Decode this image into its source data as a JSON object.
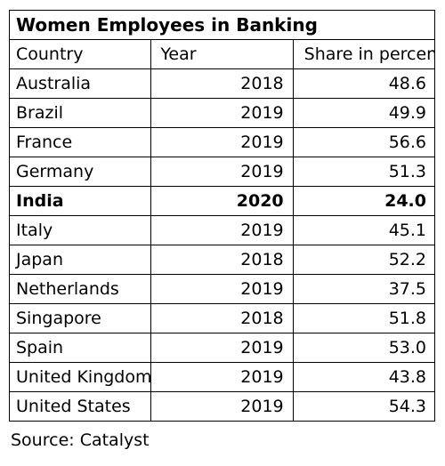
{
  "chart_data": {
    "type": "table",
    "title": "Women Employees in Banking",
    "columns": [
      "Country",
      "Year",
      "Share in percent"
    ],
    "highlight_row": "India",
    "rows": [
      {
        "country": "Australia",
        "year": "2018",
        "share": "48.6"
      },
      {
        "country": "Brazil",
        "year": "2019",
        "share": "49.9"
      },
      {
        "country": "France",
        "year": "2019",
        "share": "56.6"
      },
      {
        "country": "Germany",
        "year": "2019",
        "share": "51.3"
      },
      {
        "country": "India",
        "year": "2020",
        "share": "24.0"
      },
      {
        "country": "Italy",
        "year": "2019",
        "share": "45.1"
      },
      {
        "country": "Japan",
        "year": "2018",
        "share": "52.2"
      },
      {
        "country": "Netherlands",
        "year": "2019",
        "share": "37.5"
      },
      {
        "country": "Singapore",
        "year": "2018",
        "share": "51.8"
      },
      {
        "country": "Spain",
        "year": "2019",
        "share": "53.0"
      },
      {
        "country": "United Kingdom",
        "year": "2019",
        "share": "43.8"
      },
      {
        "country": "United States",
        "year": "2019",
        "share": "54.3"
      }
    ],
    "source": "Source: Catalyst"
  }
}
